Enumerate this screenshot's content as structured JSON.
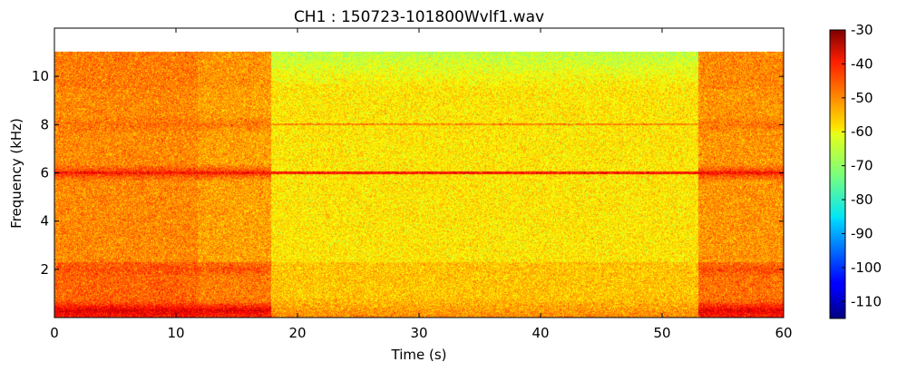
{
  "chart_data": {
    "type": "heatmap",
    "title": "CH1 : 150723-101800Wvlf1.wav",
    "xlabel": "Time (s)",
    "ylabel": "Frequency (kHz)",
    "xlim": [
      0,
      60
    ],
    "ylim": [
      0,
      12
    ],
    "data_max_frequency_khz": 11.025,
    "x_ticks": [
      "0",
      "10",
      "20",
      "30",
      "40",
      "50",
      "60"
    ],
    "y_ticks": [
      "2",
      "4",
      "6",
      "8",
      "10"
    ],
    "colorbar": {
      "colormap": "jet",
      "range": [
        -115,
        -30
      ],
      "ticks": [
        "-30",
        "-40",
        "-50",
        "-60",
        "-70",
        "-80",
        "-90",
        "-100",
        "-110"
      ]
    },
    "segments": [
      {
        "t_start": 0,
        "t_end": 11.8,
        "mean_level_db": -52
      },
      {
        "t_start": 11.8,
        "t_end": 17.8,
        "mean_level_db": -54
      },
      {
        "t_start": 17.8,
        "t_end": 53.0,
        "mean_level_db": -60
      },
      {
        "t_start": 53.0,
        "t_end": 60,
        "mean_level_db": -53
      }
    ],
    "bands_khz": [
      {
        "center": 6.0,
        "level_db": -44,
        "description": "persistent tone"
      },
      {
        "center": 8.0,
        "level_db": -50
      },
      {
        "center": 2.0,
        "level_db": -50
      },
      {
        "center": 0.3,
        "level_db": -44
      }
    ]
  }
}
